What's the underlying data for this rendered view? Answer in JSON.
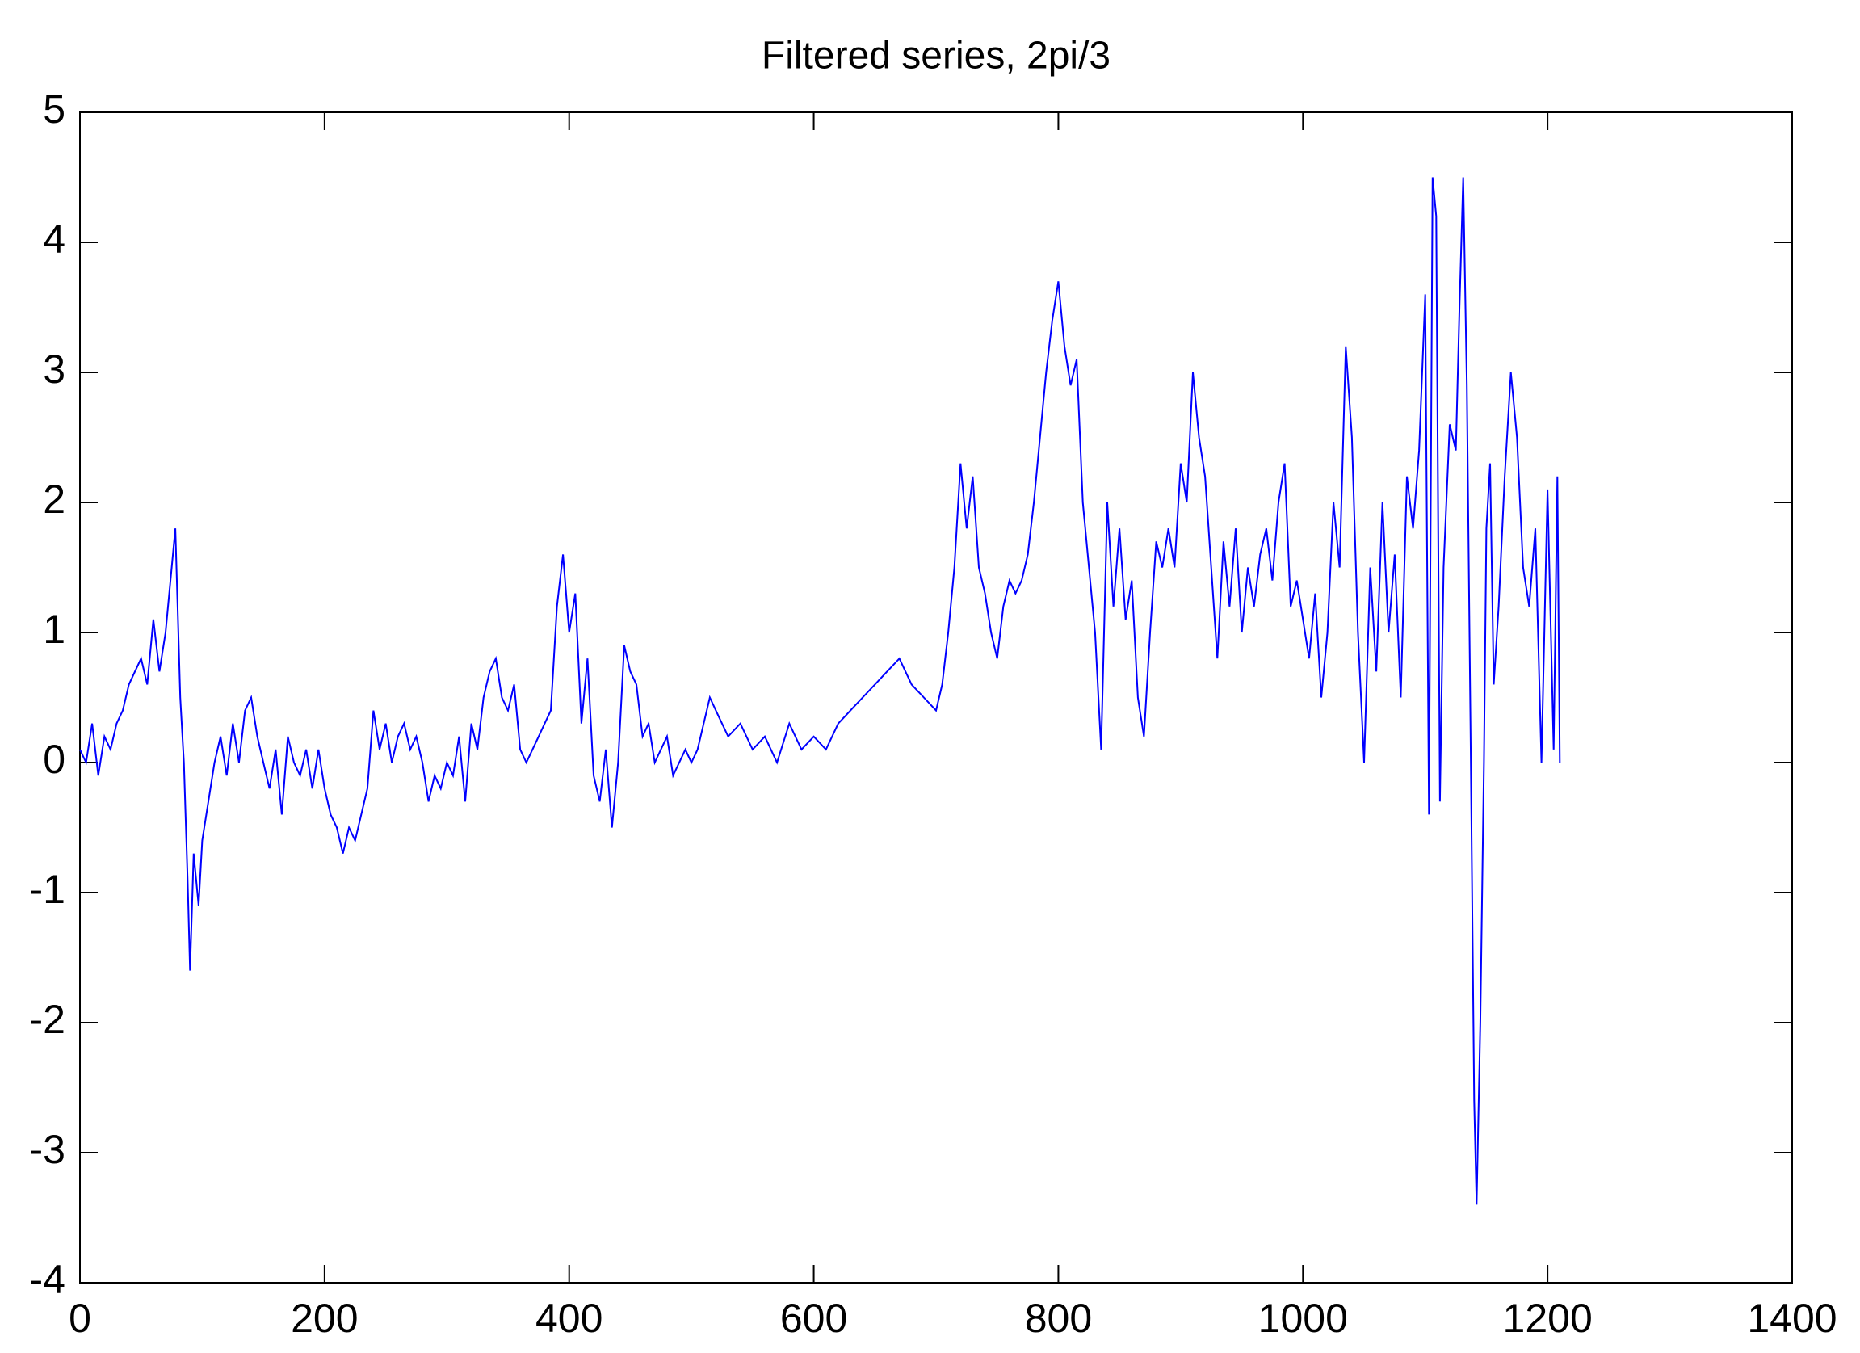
{
  "chart_data": {
    "type": "line",
    "title": "Filtered series, 2pi/3",
    "x": [
      0,
      5,
      10,
      15,
      20,
      25,
      30,
      35,
      40,
      45,
      50,
      55,
      60,
      65,
      70,
      75,
      78,
      82,
      85,
      88,
      90,
      93,
      97,
      100,
      105,
      110,
      115,
      120,
      125,
      130,
      135,
      140,
      145,
      150,
      155,
      160,
      165,
      170,
      175,
      180,
      185,
      190,
      195,
      200,
      205,
      210,
      215,
      220,
      225,
      230,
      235,
      240,
      245,
      250,
      255,
      260,
      265,
      270,
      275,
      280,
      285,
      290,
      295,
      300,
      305,
      310,
      315,
      320,
      325,
      330,
      335,
      340,
      345,
      350,
      355,
      360,
      365,
      370,
      375,
      380,
      385,
      390,
      395,
      400,
      405,
      410,
      415,
      420,
      425,
      430,
      435,
      440,
      445,
      450,
      455,
      460,
      465,
      470,
      475,
      480,
      485,
      490,
      495,
      500,
      505,
      510,
      515,
      520,
      530,
      540,
      550,
      560,
      570,
      580,
      590,
      600,
      610,
      620,
      630,
      640,
      650,
      660,
      670,
      680,
      690,
      700,
      705,
      710,
      715,
      720,
      725,
      730,
      735,
      740,
      745,
      750,
      755,
      760,
      765,
      770,
      775,
      780,
      785,
      790,
      795,
      800,
      805,
      810,
      815,
      820,
      825,
      830,
      835,
      840,
      845,
      850,
      855,
      860,
      865,
      870,
      875,
      880,
      885,
      890,
      895,
      900,
      905,
      910,
      915,
      920,
      925,
      930,
      935,
      940,
      945,
      950,
      955,
      960,
      965,
      970,
      975,
      980,
      985,
      990,
      995,
      1000,
      1005,
      1010,
      1015,
      1020,
      1025,
      1030,
      1035,
      1040,
      1045,
      1050,
      1055,
      1060,
      1065,
      1070,
      1075,
      1080,
      1085,
      1090,
      1095,
      1100,
      1103,
      1106,
      1109,
      1112,
      1115,
      1120,
      1125,
      1128,
      1131,
      1134,
      1137,
      1140,
      1142,
      1145,
      1148,
      1150,
      1153,
      1156,
      1160,
      1165,
      1170,
      1175,
      1180,
      1185,
      1190,
      1195,
      1200,
      1205,
      1208,
      1210
    ],
    "values": [
      0.1,
      0.0,
      0.3,
      -0.1,
      0.2,
      0.1,
      0.3,
      0.4,
      0.6,
      0.7,
      0.8,
      0.6,
      1.1,
      0.7,
      1.0,
      1.5,
      1.8,
      0.5,
      0.0,
      -0.9,
      -1.6,
      -0.7,
      -1.1,
      -0.6,
      -0.3,
      0.0,
      0.2,
      -0.1,
      0.3,
      0.0,
      0.4,
      0.5,
      0.2,
      0.0,
      -0.2,
      0.1,
      -0.4,
      0.2,
      0.0,
      -0.1,
      0.1,
      -0.2,
      0.1,
      -0.2,
      -0.4,
      -0.5,
      -0.7,
      -0.5,
      -0.6,
      -0.4,
      -0.2,
      0.4,
      0.1,
      0.3,
      0.0,
      0.2,
      0.3,
      0.1,
      0.2,
      0.0,
      -0.3,
      -0.1,
      -0.2,
      0.0,
      -0.1,
      0.2,
      -0.3,
      0.3,
      0.1,
      0.5,
      0.7,
      0.8,
      0.5,
      0.4,
      0.6,
      0.1,
      0.0,
      0.1,
      0.2,
      0.3,
      0.4,
      1.2,
      1.6,
      1.0,
      1.3,
      0.3,
      0.8,
      -0.1,
      -0.3,
      0.1,
      -0.5,
      0.0,
      0.9,
      0.7,
      0.6,
      0.2,
      0.3,
      0.0,
      0.1,
      0.2,
      -0.1,
      0.0,
      0.1,
      0.0,
      0.1,
      0.3,
      0.5,
      0.4,
      0.2,
      0.3,
      0.1,
      0.2,
      0.0,
      0.3,
      0.1,
      0.2,
      0.1,
      0.3,
      0.4,
      0.5,
      0.6,
      0.7,
      0.8,
      0.6,
      0.5,
      0.4,
      0.6,
      1.0,
      1.5,
      2.3,
      1.8,
      2.2,
      1.5,
      1.3,
      1.0,
      0.8,
      1.2,
      1.4,
      1.3,
      1.4,
      1.6,
      2.0,
      2.5,
      3.0,
      3.4,
      3.7,
      3.2,
      2.9,
      3.1,
      2.0,
      1.5,
      1.0,
      0.1,
      2.0,
      1.2,
      1.8,
      1.1,
      1.4,
      0.5,
      0.2,
      1.0,
      1.7,
      1.5,
      1.8,
      1.5,
      2.3,
      2.0,
      3.0,
      2.5,
      2.2,
      1.5,
      0.8,
      1.7,
      1.2,
      1.8,
      1.0,
      1.5,
      1.2,
      1.6,
      1.8,
      1.4,
      2.0,
      2.3,
      1.2,
      1.4,
      1.1,
      0.8,
      1.3,
      0.5,
      1.0,
      2.0,
      1.5,
      3.2,
      2.5,
      1.0,
      0.0,
      1.5,
      0.7,
      2.0,
      1.0,
      1.6,
      0.5,
      2.2,
      1.8,
      2.4,
      3.6,
      -0.4,
      4.5,
      4.2,
      -0.3,
      1.5,
      2.6,
      2.4,
      3.5,
      4.5,
      2.9,
      0.3,
      -2.6,
      -3.4,
      -2.0,
      0.0,
      1.8,
      2.3,
      0.6,
      1.2,
      2.2,
      3.0,
      2.5,
      1.5,
      1.2,
      1.8,
      0.0,
      2.1,
      0.1,
      2.2,
      0.0
    ],
    "color": "#0000ff",
    "xlim": [
      0,
      1400
    ],
    "xticks": [
      0,
      200,
      400,
      600,
      800,
      1000,
      1200,
      1400
    ],
    "ylim": [
      -4,
      5
    ],
    "yticks": [
      -4,
      -3,
      -2,
      -1,
      0,
      1,
      2,
      3,
      4,
      5
    ]
  }
}
